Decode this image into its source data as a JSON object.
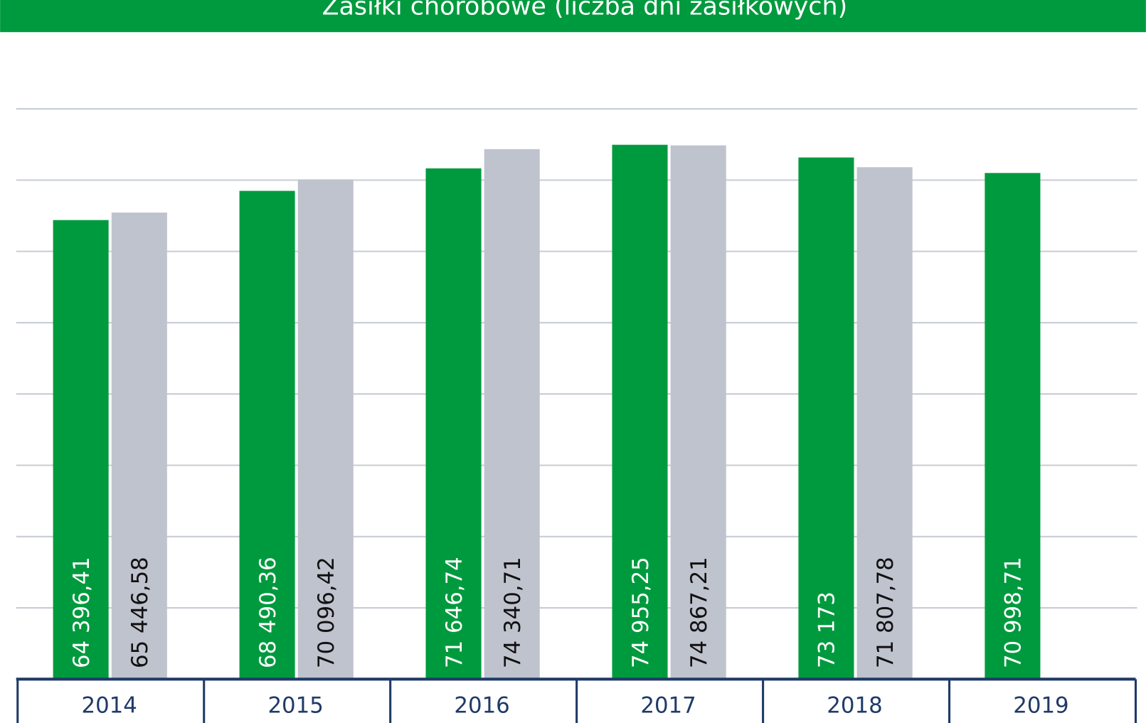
{
  "chart_data": {
    "type": "bar",
    "title": "Zasiłki chorobowe (liczba dni zasiłkowych)",
    "categories": [
      "2014",
      "2015",
      "2016",
      "2017",
      "2018",
      "2019"
    ],
    "series": [
      {
        "color": "#009a3e",
        "values": [
          64396.41,
          68490.36,
          71646.74,
          74955.25,
          73173,
          70998.71
        ],
        "value_labels": [
          "64 396,41",
          "68 490,36",
          "71 646,74",
          "74 955,25",
          "73 173",
          "70 998,71"
        ]
      },
      {
        "color": "#bfc3ce",
        "values": [
          65446.58,
          70096.42,
          74340.71,
          74867.21,
          71807.78,
          null
        ],
        "value_labels": [
          "65 446,58",
          "70 096,42",
          "74 340,71",
          "74 867,21",
          "71 807,78",
          null
        ]
      }
    ],
    "ylim": [
      0,
      80000
    ],
    "yticks": [
      0,
      10000,
      20000,
      30000,
      40000,
      50000,
      60000,
      70000,
      80000
    ],
    "grid": true
  }
}
